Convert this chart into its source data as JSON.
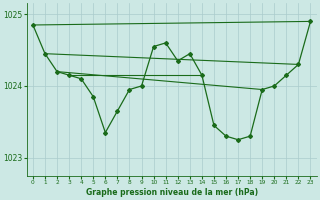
{
  "title": "Graphe pression niveau de la mer (hPa)",
  "xlim": [
    -0.5,
    23.5
  ],
  "ylim": [
    1022.75,
    1025.15
  ],
  "yticks": [
    1023,
    1024,
    1025
  ],
  "xticks": [
    0,
    1,
    2,
    3,
    4,
    5,
    6,
    7,
    8,
    9,
    10,
    11,
    12,
    13,
    14,
    15,
    16,
    17,
    18,
    19,
    20,
    21,
    22,
    23
  ],
  "background_color": "#cce8e4",
  "grid_color": "#aacccc",
  "line_color": "#1a6b1a",
  "main_y": [
    1024.85,
    1024.45,
    1024.2,
    1024.15,
    1024.1,
    1023.85,
    1023.35,
    1023.65,
    1023.95,
    1024.0,
    1024.55,
    1024.6,
    1024.35,
    1024.45,
    1024.15,
    1023.45,
    1023.3,
    1023.25,
    1023.3,
    1023.95,
    1024.0,
    1024.15,
    1024.3,
    1024.9
  ],
  "trend_lines": [
    {
      "x": [
        0,
        23
      ],
      "y": [
        1024.85,
        1024.9
      ]
    },
    {
      "x": [
        1,
        22
      ],
      "y": [
        1024.45,
        1024.3
      ]
    },
    {
      "x": [
        2,
        19
      ],
      "y": [
        1024.2,
        1023.95
      ]
    },
    {
      "x": [
        3,
        14
      ],
      "y": [
        1024.15,
        1024.15
      ]
    }
  ],
  "figsize": [
    3.2,
    2.0
  ],
  "dpi": 100
}
